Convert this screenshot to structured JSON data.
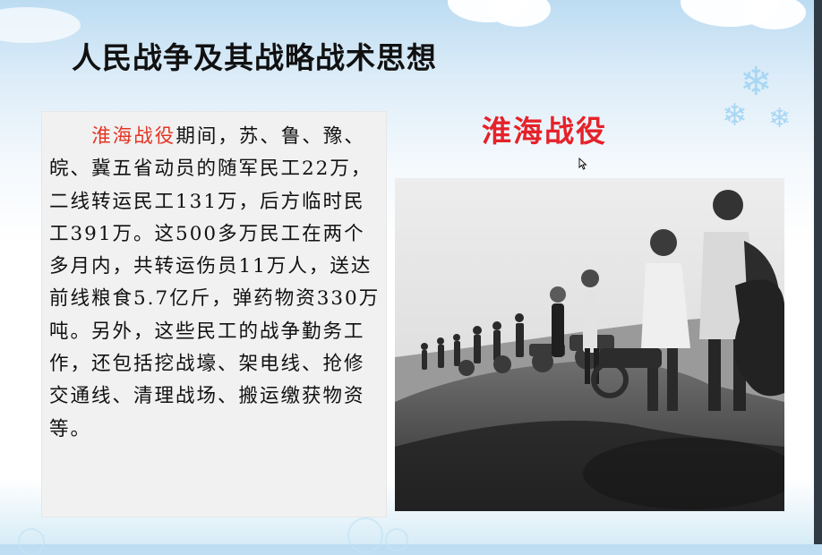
{
  "slide": {
    "title": "人民战争及其战略战术思想",
    "text_highlight": "淮海战役",
    "text_body": "期间，苏、鲁、豫、皖、冀五省动员的随军民工22万，二线转运民工131万，后方临时民工391万。这500多万民工在两个多月内，共转运伤员11万人，送达前线粮食5.7亿斤，弹药物资330万吨。另外，这些民工的战争勤务工作，还包括挖战壕、架电线、抢修交通线、清理战场、搬运缴获物资等。",
    "photo_caption": "淮海战役"
  },
  "colors": {
    "highlight": "#e53524",
    "caption": "#e5222a",
    "scrollbar": "#2f3a45"
  },
  "icons": [
    "cursor-icon",
    "snowflake-icon",
    "cloud-decoration"
  ]
}
